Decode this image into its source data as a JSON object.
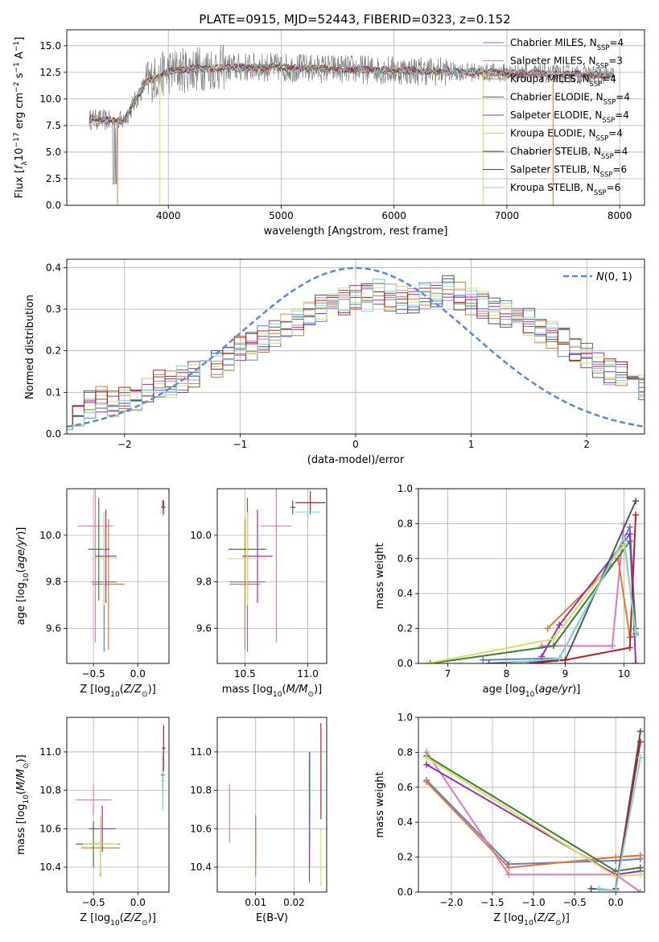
{
  "figure_title": "PLATE=0915, MJD=52443, FIBERID=0323, z=0.152",
  "models": [
    {
      "name": "Chabrier MILES, N_SSP=4",
      "short": "Chabrier MILES",
      "n": "4",
      "color": "#5b7fd8"
    },
    {
      "name": "Salpeter MILES, N_SSP=3",
      "short": "Salpeter MILES",
      "n": "3",
      "color": "#e377c2"
    },
    {
      "name": "Kroupa MILES, N_SSP=4",
      "short": "Kroupa MILES",
      "n": "4",
      "color": "#e07a2a"
    },
    {
      "name": "Chabrier ELODIE, N_SSP=4",
      "short": "Chabrier ELODIE",
      "n": "4",
      "color": "#3a7d3a"
    },
    {
      "name": "Salpeter ELODIE, N_SSP=4",
      "short": "Salpeter ELODIE",
      "n": "4",
      "color": "#9a2fb5"
    },
    {
      "name": "Kroupa ELODIE, N_SSP=4",
      "short": "Kroupa ELODIE",
      "n": "4",
      "color": "#d6e05a"
    },
    {
      "name": "Chabrier STELIB, N_SSP=4",
      "short": "Chabrier STELIB",
      "n": "4",
      "color": "#555555"
    },
    {
      "name": "Salpeter STELIB, N_SSP=6",
      "short": "Salpeter STELIB",
      "n": "6",
      "color": "#b22222"
    },
    {
      "name": "Kroupa STELIB, N_SSP=6",
      "short": "Kroupa STELIB",
      "n": "6",
      "color": "#7fd3e6"
    }
  ],
  "chart_data": [
    {
      "id": "spectrum",
      "type": "line",
      "xlabel": "wavelength [Angstrom, rest frame]",
      "ylabel": "Flux [f_λ 10^-17 erg cm^-2 s^-1 A^-1]",
      "xlim": [
        3100,
        8220
      ],
      "ylim": [
        0,
        16.5
      ],
      "xticks": [
        4000,
        5000,
        6000,
        7000,
        8000
      ],
      "yticks": [
        0.0,
        2.5,
        5.0,
        7.5,
        10.0,
        12.5,
        15.0
      ],
      "legend": "right",
      "continuum": [
        [
          3300,
          8.1
        ],
        [
          3600,
          7.9
        ],
        [
          3800,
          11.5
        ],
        [
          4000,
          12.6
        ],
        [
          4300,
          12.9
        ],
        [
          4800,
          13.0
        ],
        [
          5200,
          12.9
        ],
        [
          5600,
          12.8
        ],
        [
          6000,
          12.7
        ],
        [
          6400,
          12.6
        ],
        [
          6800,
          12.5
        ],
        [
          7200,
          12.4
        ],
        [
          7600,
          12.3
        ],
        [
          7950,
          12.2
        ]
      ],
      "data_color": "#808080"
    },
    {
      "id": "residuals",
      "type": "line",
      "xlabel": "(data-model)/error",
      "ylabel": "Normed distribution",
      "xlim": [
        -2.5,
        2.5
      ],
      "ylim": [
        0,
        0.42
      ],
      "xticks": [
        -2,
        -1,
        0,
        1,
        2
      ],
      "yticks": [
        0.0,
        0.1,
        0.2,
        0.3,
        0.4
      ],
      "legend": "top-right",
      "gauss_label": "N(0, 1)",
      "gauss_color": "#5b8bd6",
      "bin_width": 0.1,
      "hist_levels": [
        0.045,
        0.05,
        0.07,
        0.085,
        0.07,
        0.085,
        0.09,
        0.1,
        0.12,
        0.12,
        0.13,
        0.14,
        0.15,
        0.17,
        0.18,
        0.2,
        0.21,
        0.23,
        0.24,
        0.26,
        0.27,
        0.29,
        0.3,
        0.31,
        0.32,
        0.33,
        0.33,
        0.34,
        0.33,
        0.32,
        0.32,
        0.33,
        0.34,
        0.35,
        0.33,
        0.32,
        0.31,
        0.3,
        0.29,
        0.28,
        0.27,
        0.25,
        0.24,
        0.22,
        0.2,
        0.19,
        0.17,
        0.15,
        0.14,
        0.12,
        0.11,
        0.1,
        0.09,
        0.08,
        0.07,
        0.06
      ]
    },
    {
      "id": "age_vs_Z",
      "type": "scatter",
      "xlabel": "Z [log10(Z/Z⊙)]",
      "ylabel": "age [log10(age/yr)]",
      "xlim": [
        -0.8,
        0.35
      ],
      "ylim": [
        9.45,
        10.2
      ],
      "xticks": [
        -0.5,
        0.0
      ],
      "yticks": [
        9.6,
        9.8,
        10.0
      ],
      "points": [
        {
          "model": 0,
          "x": -0.38,
          "y": 9.8,
          "xerr": 0.14,
          "yerr": 0.3
        },
        {
          "model": 1,
          "x": -0.48,
          "y": 10.04,
          "xerr": 0.2,
          "yerr": 0.5
        },
        {
          "model": 2,
          "x": -0.33,
          "y": 9.79,
          "xerr": 0.18,
          "yerr": 0.28
        },
        {
          "model": 3,
          "x": -0.44,
          "y": 9.94,
          "xerr": 0.12,
          "yerr": 0.22
        },
        {
          "model": 4,
          "x": -0.36,
          "y": 9.91,
          "xerr": 0.12,
          "yerr": 0.2
        },
        {
          "model": 5,
          "x": -0.38,
          "y": 9.9,
          "xerr": 0.15,
          "yerr": 0.2
        },
        {
          "model": 6,
          "x": 0.28,
          "y": 10.12,
          "xerr": 0.02,
          "yerr": 0.03
        },
        {
          "model": 7,
          "x": 0.29,
          "y": 10.12,
          "xerr": 0.02,
          "yerr": 0.03
        },
        {
          "model": 8,
          "x": 0.28,
          "y": 10.1,
          "xerr": 0.03,
          "yerr": 0.02
        }
      ]
    },
    {
      "id": "age_vs_mass",
      "type": "scatter",
      "xlabel": "mass [log10(M/M⊙)]",
      "ylabel": "",
      "xlim": [
        10.28,
        11.15
      ],
      "ylim": [
        9.45,
        10.2
      ],
      "xticks": [
        10.5,
        11.0
      ],
      "yticks": [
        9.6,
        9.8,
        10.0
      ],
      "points": [
        {
          "model": 0,
          "x": 10.52,
          "y": 9.8,
          "xerr": 0.14,
          "yerr": 0.3
        },
        {
          "model": 1,
          "x": 10.75,
          "y": 10.04,
          "xerr": 0.12,
          "yerr": 0.5
        },
        {
          "model": 2,
          "x": 10.5,
          "y": 9.79,
          "xerr": 0.12,
          "yerr": 0.28
        },
        {
          "model": 3,
          "x": 10.52,
          "y": 9.94,
          "xerr": 0.15,
          "yerr": 0.22
        },
        {
          "model": 4,
          "x": 10.6,
          "y": 9.91,
          "xerr": 0.12,
          "yerr": 0.2
        },
        {
          "model": 5,
          "x": 10.52,
          "y": 9.9,
          "xerr": 0.15,
          "yerr": 0.2
        },
        {
          "model": 6,
          "x": 10.88,
          "y": 10.12,
          "xerr": 0.02,
          "yerr": 0.03
        },
        {
          "model": 7,
          "x": 11.02,
          "y": 10.14,
          "xerr": 0.12,
          "yerr": 0.05
        },
        {
          "model": 8,
          "x": 11.0,
          "y": 10.1,
          "xerr": 0.1,
          "yerr": 0.02
        }
      ]
    },
    {
      "id": "massweight_vs_age",
      "type": "line",
      "xlabel": "age [log10(age/yr)]",
      "ylabel": "mass weight",
      "xlim": [
        6.5,
        10.35
      ],
      "ylim": [
        0,
        1.0
      ],
      "xticks": [
        7,
        8,
        9,
        10
      ],
      "yticks": [
        0.0,
        0.2,
        0.4,
        0.6,
        0.8,
        1.0
      ],
      "series": [
        {
          "model": 0,
          "x": [
            7.6,
            8.9,
            10.1,
            10.2
          ],
          "y": [
            0.02,
            0.03,
            0.78,
            0.17
          ]
        },
        {
          "model": 1,
          "x": [
            8.6,
            9.8,
            10.0
          ],
          "y": [
            0.1,
            0.1,
            0.8
          ]
        },
        {
          "model": 2,
          "x": [
            8.7,
            9.9,
            10.1,
            10.2
          ],
          "y": [
            0.2,
            0.6,
            0.15,
            0.16
          ]
        },
        {
          "model": 3,
          "x": [
            6.7,
            8.8,
            10.1,
            10.2
          ],
          "y": [
            0.0,
            0.1,
            0.7,
            0.2
          ]
        },
        {
          "model": 4,
          "x": [
            8.6,
            8.9,
            10.1,
            10.2
          ],
          "y": [
            0.04,
            0.22,
            0.74,
            0.0
          ]
        },
        {
          "model": 5,
          "x": [
            6.65,
            8.8,
            10.0,
            10.2
          ],
          "y": [
            0.0,
            0.14,
            0.68,
            0.18
          ]
        },
        {
          "model": 6,
          "x": [
            7.7,
            9.0,
            10.2
          ],
          "y": [
            0.0,
            0.02,
            0.93
          ]
        },
        {
          "model": 7,
          "x": [
            8.4,
            9.0,
            10.1,
            10.2
          ],
          "y": [
            0.0,
            0.02,
            0.09,
            0.85
          ]
        },
        {
          "model": 8,
          "x": [
            8.0,
            8.9,
            10.0,
            10.2
          ],
          "y": [
            0.0,
            0.03,
            0.72,
            0.16
          ]
        }
      ]
    },
    {
      "id": "mass_vs_Z",
      "type": "scatter",
      "xlabel": "Z [log10(Z/Z⊙)]",
      "ylabel": "mass [log10(M/M⊙)]",
      "xlim": [
        -0.8,
        0.35
      ],
      "ylim": [
        10.27,
        11.18
      ],
      "xticks": [
        -0.5,
        0.0
      ],
      "yticks": [
        10.4,
        10.6,
        10.8,
        11.0
      ],
      "points": [
        {
          "model": 0,
          "x": -0.42,
          "y": 10.52,
          "xerr": 0.22,
          "yerr": 0.15
        },
        {
          "model": 1,
          "x": -0.5,
          "y": 10.75,
          "xerr": 0.2,
          "yerr": 0.08
        },
        {
          "model": 2,
          "x": -0.42,
          "y": 10.5,
          "xerr": 0.22,
          "yerr": 0.15
        },
        {
          "model": 3,
          "x": -0.5,
          "y": 10.52,
          "xerr": 0.2,
          "yerr": 0.12
        },
        {
          "model": 4,
          "x": -0.4,
          "y": 10.6,
          "xerr": 0.15,
          "yerr": 0.12
        },
        {
          "model": 5,
          "x": -0.42,
          "y": 10.52,
          "xerr": 0.2,
          "yerr": 0.15
        },
        {
          "model": 6,
          "x": 0.28,
          "y": 10.88,
          "xerr": 0.02,
          "yerr": 0.1
        },
        {
          "model": 7,
          "x": 0.29,
          "y": 11.02,
          "xerr": 0.02,
          "yerr": 0.12
        },
        {
          "model": 8,
          "x": 0.28,
          "y": 10.85,
          "xerr": 0.02,
          "yerr": 0.15
        }
      ]
    },
    {
      "id": "mass_vs_ebv",
      "type": "scatter",
      "xlabel": "E(B-V)",
      "ylabel": "",
      "xlim": [
        0.0,
        0.0285
      ],
      "ylim": [
        10.27,
        11.18
      ],
      "xticks": [
        0.01,
        0.02
      ],
      "yticks": [
        10.4,
        10.6,
        10.8,
        11.0
      ],
      "points": [
        {
          "model": 0,
          "x": 0.01,
          "y": 10.55,
          "xerr": 0,
          "yerr": 0.12
        },
        {
          "model": 1,
          "x": 0.0032,
          "y": 10.68,
          "xerr": 0,
          "yerr": 0.15
        },
        {
          "model": 2,
          "x": 0.01,
          "y": 10.5,
          "xerr": 0,
          "yerr": 0.15
        },
        {
          "model": 3,
          "x": 0.024,
          "y": 10.5,
          "xerr": 0,
          "yerr": 0.18
        },
        {
          "model": 4,
          "x": 0.024,
          "y": 10.7,
          "xerr": 0,
          "yerr": 0.3
        },
        {
          "model": 5,
          "x": 0.027,
          "y": 10.45,
          "xerr": 0,
          "yerr": 0.15
        },
        {
          "model": 6,
          "x": 0.024,
          "y": 10.86,
          "xerr": 0,
          "yerr": 0.1
        },
        {
          "model": 7,
          "x": 0.027,
          "y": 10.9,
          "xerr": 0,
          "yerr": 0.25
        },
        {
          "model": 8,
          "x": 0.0242,
          "y": 10.75,
          "xerr": 0,
          "yerr": 0.25
        }
      ]
    },
    {
      "id": "massweight_vs_Z",
      "type": "line",
      "xlabel": "Z [log10(Z/Z⊙)]",
      "ylabel": "mass weight",
      "xlim": [
        -2.4,
        0.35
      ],
      "ylim": [
        0,
        1.0
      ],
      "xticks": [
        -2.0,
        -1.5,
        -1.0,
        -0.5,
        0.0
      ],
      "yticks": [
        0.0,
        0.2,
        0.4,
        0.6,
        0.8,
        1.0
      ],
      "series": [
        {
          "model": 0,
          "x": [
            -2.3,
            -1.3,
            0.0,
            0.3
          ],
          "y": [
            0.64,
            0.16,
            0.18,
            0.19
          ]
        },
        {
          "model": 1,
          "x": [
            -2.3,
            -1.3,
            0.0,
            0.3
          ],
          "y": [
            0.8,
            0.1,
            0.1,
            0.0
          ]
        },
        {
          "model": 2,
          "x": [
            -2.3,
            -1.3,
            0.0,
            0.3
          ],
          "y": [
            0.63,
            0.14,
            0.2,
            0.21
          ]
        },
        {
          "model": 3,
          "x": [
            -2.3,
            0.0,
            0.3
          ],
          "y": [
            0.78,
            0.12,
            0.14
          ]
        },
        {
          "model": 4,
          "x": [
            -2.3,
            0.0,
            0.3
          ],
          "y": [
            0.73,
            0.1,
            0.12
          ]
        },
        {
          "model": 5,
          "x": [
            -2.3,
            0.0,
            0.3
          ],
          "y": [
            0.77,
            0.09,
            0.1
          ]
        },
        {
          "model": 6,
          "x": [
            -0.3,
            0.0,
            0.3
          ],
          "y": [
            0.02,
            0.01,
            0.92
          ]
        },
        {
          "model": 7,
          "x": [
            0.0,
            0.3
          ],
          "y": [
            0.02,
            0.86
          ]
        },
        {
          "model": 8,
          "x": [
            -0.2,
            0.0,
            0.3
          ],
          "y": [
            0.02,
            0.01,
            0.77
          ]
        }
      ]
    }
  ]
}
